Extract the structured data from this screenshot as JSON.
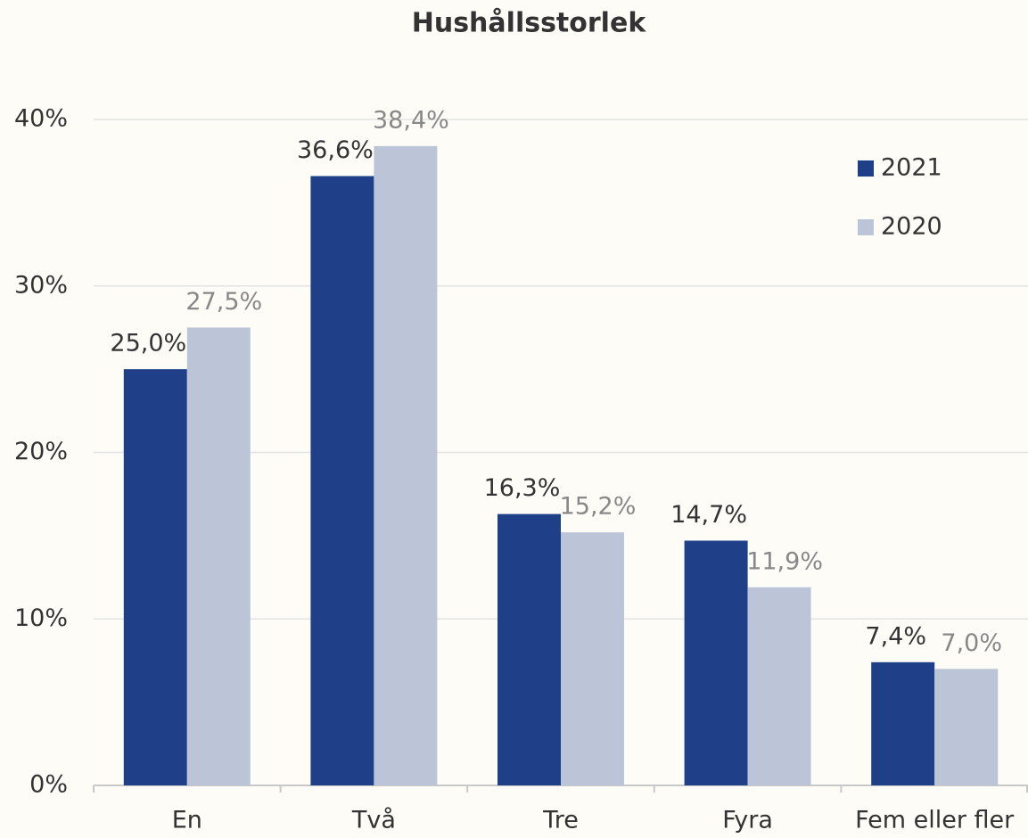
{
  "chart_data": {
    "type": "bar",
    "title": "Hushållsstorlek",
    "categories": [
      "En",
      "Två",
      "Tre",
      "Fyra",
      "Fem eller fler"
    ],
    "series": [
      {
        "name": "2021",
        "color": "#1f4088",
        "values": [
          25.0,
          36.6,
          16.3,
          14.7,
          7.4
        ],
        "value_labels": [
          "25,0%",
          "36,6%",
          "16,3%",
          "14,7%",
          "7,4%"
        ]
      },
      {
        "name": "2020",
        "color": "#bcc5d7",
        "values": [
          27.5,
          38.4,
          15.2,
          11.9,
          7.0
        ],
        "value_labels": [
          "27,5%",
          "38,4%",
          "15,2%",
          "11,9%",
          "7,0%"
        ]
      }
    ],
    "ylim": [
      0,
      40
    ],
    "yticks": [
      {
        "value": 0,
        "label": "0%"
      },
      {
        "value": 10,
        "label": "10%"
      },
      {
        "value": 20,
        "label": "20%"
      },
      {
        "value": 30,
        "label": "30%"
      },
      {
        "value": 40,
        "label": "40%"
      }
    ],
    "grid": true,
    "legend": "upper right"
  }
}
